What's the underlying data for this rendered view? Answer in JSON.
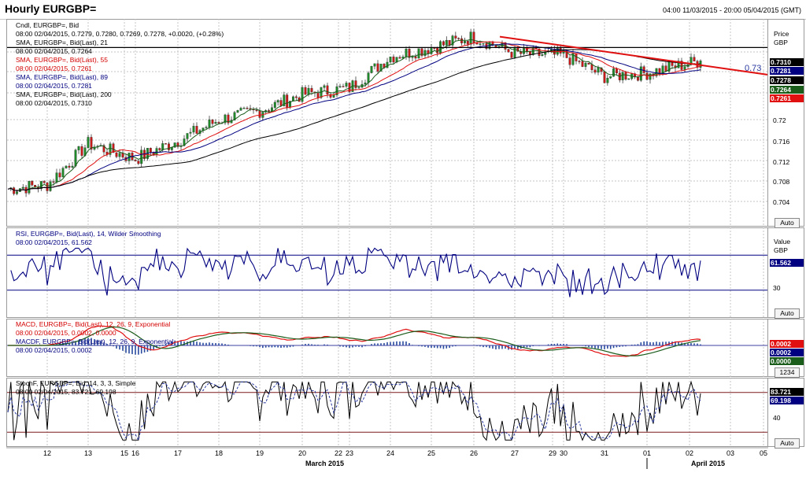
{
  "header": {
    "title": "Hourly EURGBP=",
    "range": "04:00 11/03/2015 - 20:00 05/04/2015 (GMT)"
  },
  "price": {
    "legend": [
      {
        "t": "Cndl, EURGBP=, Bid",
        "c": "#000000"
      },
      {
        "t": "08:00 02/04/2015, 0.7279, 0.7280, 0.7269, 0.7278, +0.0020, (+0.28%)",
        "c": "#000000"
      },
      {
        "t": "SMA, EURGBP=, Bid(Last), 21",
        "c": "#000000"
      },
      {
        "t": "08:00 02/04/2015, 0.7264",
        "c": "#000000"
      },
      {
        "t": "SMA, EURGBP=, Bid(Last), 55",
        "c": "#d40000"
      },
      {
        "t": "08:00 02/04/2015, 0.7261",
        "c": "#d40000"
      },
      {
        "t": "SMA, EURGBP=, Bid(Last), 89",
        "c": "#000080"
      },
      {
        "t": "08:00 02/04/2015, 0.7281",
        "c": "#000080"
      },
      {
        "t": "SMA, EURGBP=, Bid(Last), 200",
        "c": "#000000"
      },
      {
        "t": "08:00 02/04/2015, 0.7310",
        "c": "#000000"
      }
    ],
    "axis_title": [
      "Price",
      "GBP"
    ],
    "ticks": [
      "0.72",
      "0.716",
      "0.712",
      "0.708",
      "0.704"
    ],
    "level_label": "0.73",
    "boxes": [
      {
        "t": "0.7310",
        "bg": "#000000",
        "fg": "#ffffff"
      },
      {
        "t": "0.7281",
        "bg": "#000080",
        "fg": "#ffffff"
      },
      {
        "t": "0.7278",
        "bg": "#000000",
        "fg": "#ffffff"
      },
      {
        "t": "0.7264",
        "bg": "#1a5c1a",
        "fg": "#ffffff"
      },
      {
        "t": "0.7261",
        "bg": "#e01010",
        "fg": "#ffffff"
      }
    ],
    "auto": "Auto"
  },
  "rsi": {
    "legend": [
      {
        "t": "RSI, EURGBP=, Bid(Last), 14, Wilder Smoothing",
        "c": "#000080"
      },
      {
        "t": "08:00 02/04/2015, 61.562",
        "c": "#000080"
      }
    ],
    "axis_title": [
      "Value",
      "GBP"
    ],
    "box": "61.562",
    "tick": "30",
    "auto": "Auto"
  },
  "macd": {
    "legend": [
      {
        "t": "MACD, EURGBP=, Bid(Last), 12, 26, 9, Exponential",
        "c": "#d40000"
      },
      {
        "t": "08:00 02/04/2015, 0.0002, 0.0000",
        "c": "#d40000"
      },
      {
        "t": "MACDF, EURGBP=, Bid(Last), 12, 26, 9, Exponential",
        "c": "#000080"
      },
      {
        "t": "08:00 02/04/2015, 0.0002",
        "c": "#000080"
      }
    ],
    "boxes": [
      {
        "t": "0.0002",
        "bg": "#e01010",
        "fg": "#ffffff"
      },
      {
        "t": "0.0002",
        "bg": "#000080",
        "fg": "#ffffff"
      },
      {
        "t": "0.0000",
        "bg": "#1a5c1a",
        "fg": "#ffffff"
      }
    ],
    "scale_box": "1234"
  },
  "stoch": {
    "legend": [
      {
        "t": "StochF, EURGBP=, Bid, 14, 3, 3, Simple",
        "c": "#000000"
      },
      {
        "t": "08:00 02/04/2015, 83.721, 69.198",
        "c": "#000000"
      }
    ],
    "boxes": [
      {
        "t": "83.721",
        "bg": "#000000",
        "fg": "#ffffff"
      },
      {
        "t": "69.198",
        "bg": "#000080",
        "fg": "#ffffff"
      }
    ],
    "tick": "40",
    "auto": "Auto"
  },
  "xaxis": {
    "days": [
      "12",
      "13",
      "15",
      "16",
      "17",
      "18",
      "19",
      "20",
      "22",
      "23",
      "24",
      "25",
      "26",
      "27",
      "29",
      "30",
      "31",
      "01",
      "02",
      "03",
      "05"
    ],
    "months": [
      "March 2015",
      "April 2015"
    ]
  },
  "chart_data": [
    {
      "type": "candlestick",
      "title": "Hourly EURGBP=",
      "ylabel": "Price GBP",
      "ylim": [
        0.7005,
        0.7345
      ],
      "x": [
        "11 Mar",
        "12 Mar",
        "13 Mar",
        "16 Mar",
        "17 Mar",
        "18 Mar",
        "19 Mar",
        "20 Mar",
        "23 Mar",
        "24 Mar",
        "25 Mar",
        "26 Mar",
        "27 Mar",
        "30 Mar",
        "31 Mar",
        "01 Apr",
        "02 Apr"
      ],
      "close": [
        0.7065,
        0.7072,
        0.714,
        0.7115,
        0.7145,
        0.718,
        0.7195,
        0.7222,
        0.7233,
        0.7285,
        0.73,
        0.7318,
        0.729,
        0.7287,
        0.7252,
        0.7258,
        0.7278
      ],
      "series": [
        {
          "name": "SMA 21",
          "last": 0.7264
        },
        {
          "name": "SMA 55",
          "last": 0.7261
        },
        {
          "name": "SMA 89",
          "last": 0.7281
        },
        {
          "name": "SMA 200",
          "last": 0.731
        }
      ],
      "horizontal_level": 0.73,
      "trendline": {
        "from": [
          "26 Mar",
          0.7318
        ],
        "to": [
          "02 Apr",
          0.7262
        ]
      },
      "last_bar": {
        "date": "08:00 02/04/2015",
        "open": 0.7279,
        "high": 0.728,
        "low": 0.7269,
        "close": 0.7278,
        "change": 0.002
      }
    },
    {
      "type": "line",
      "name": "RSI 14",
      "levels": [
        30,
        70
      ],
      "last": 61.562
    },
    {
      "type": "line",
      "name": "MACD 12,26,9",
      "last": 0.0002,
      "signal": 0.0
    },
    {
      "type": "line",
      "name": "StochF 14,3,3",
      "last_k": 83.721,
      "last_d": 69.198,
      "levels": [
        20,
        80
      ]
    }
  ]
}
